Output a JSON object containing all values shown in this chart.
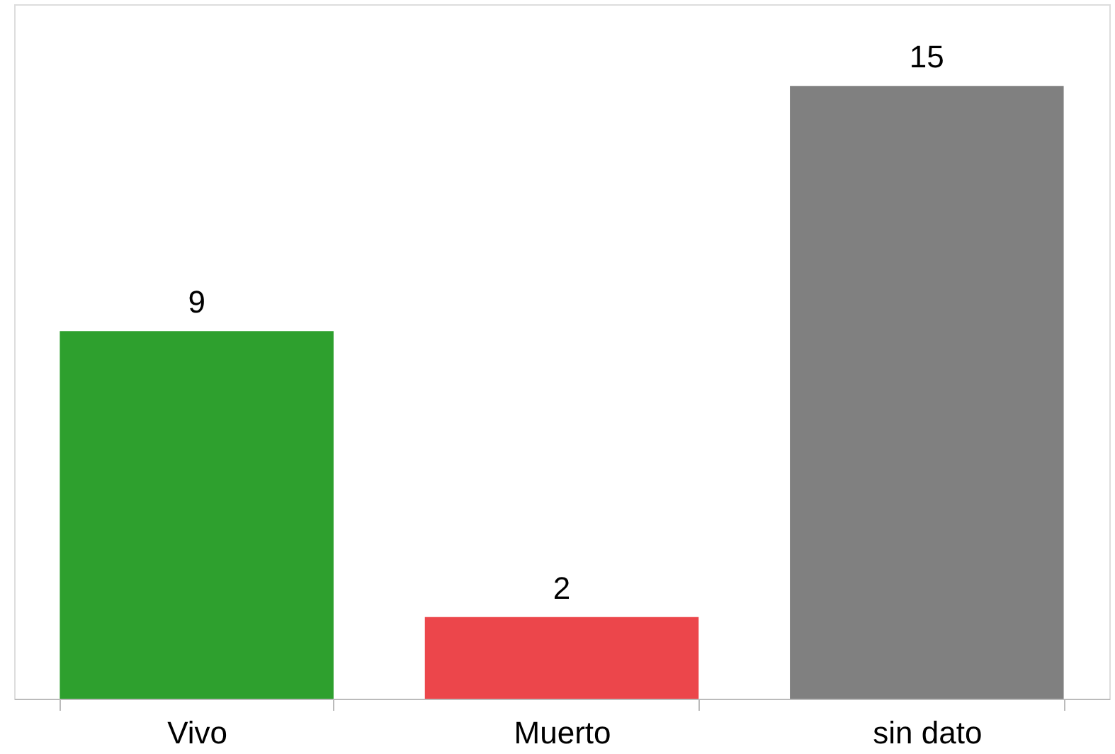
{
  "chart_data": {
    "type": "bar",
    "categories": [
      "Vivo",
      "Muerto",
      "sin dato"
    ],
    "values": [
      9,
      2,
      15
    ],
    "colors": [
      "#2ea02e",
      "#ec464b",
      "#808080"
    ],
    "ylim": [
      0,
      17
    ],
    "data_labels": true,
    "grid": false
  }
}
